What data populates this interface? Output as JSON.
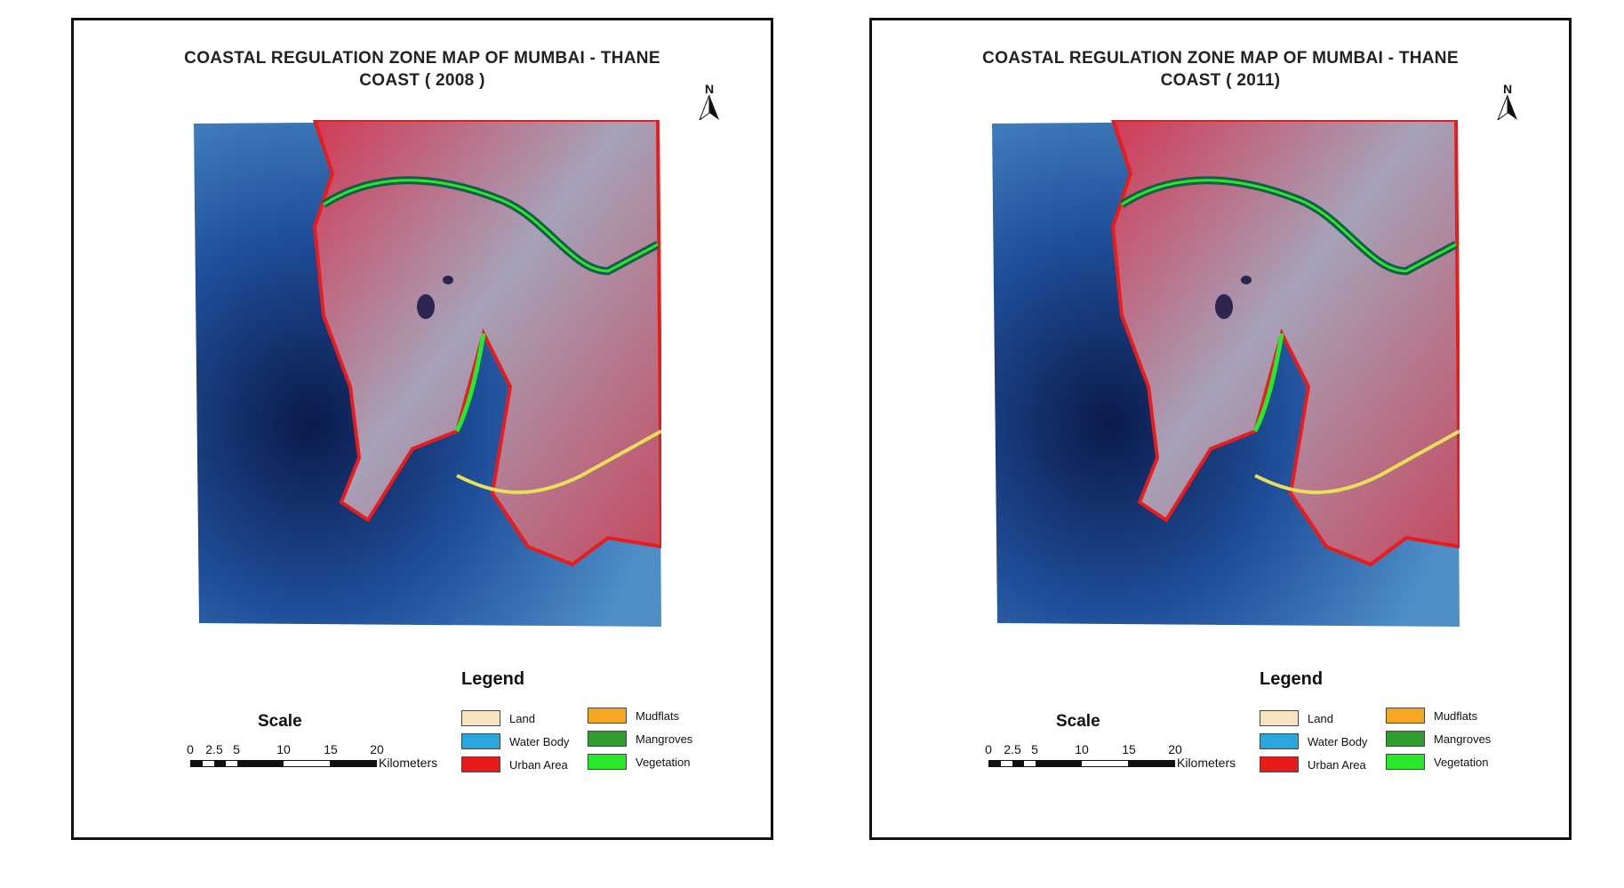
{
  "maps": [
    {
      "title_line1": "COASTAL REGULATION ZONE MAP OF MUMBAI - THANE",
      "title_line2": "COAST  ( 2008 )",
      "north": "N",
      "legend_title": "Legend",
      "legend": [
        {
          "label": "Land",
          "color": "#f6e3c0"
        },
        {
          "label": "Water Body",
          "color": "#2aa6df"
        },
        {
          "label": "Urban Area",
          "color": "#e81c1c"
        },
        {
          "label": "Mudflats",
          "color": "#f5a623"
        },
        {
          "label": "Mangroves",
          "color": "#2f9e2f"
        },
        {
          "label": "Vegetation",
          "color": "#27e82a"
        }
      ],
      "scale_title": "Scale",
      "scale_ticks": [
        "0",
        "2.5",
        "5",
        "10",
        "15",
        "20"
      ],
      "scale_unit": "Kilometers"
    },
    {
      "title_line1": "COASTAL REGULATION ZONE MAP OF MUMBAI - THANE",
      "title_line2": "COAST  ( 2011)",
      "north": "N",
      "legend_title": "Legend",
      "legend": [
        {
          "label": "Land",
          "color": "#f6e3c0"
        },
        {
          "label": "Water Body",
          "color": "#2aa6df"
        },
        {
          "label": "Urban Area",
          "color": "#e81c1c"
        },
        {
          "label": "Mudflats",
          "color": "#f5a623"
        },
        {
          "label": "Mangroves",
          "color": "#2f9e2f"
        },
        {
          "label": "Vegetation",
          "color": "#27e82a"
        }
      ],
      "scale_title": "Scale",
      "scale_ticks": [
        "0",
        "2.5",
        "5",
        "10",
        "15",
        "20"
      ],
      "scale_unit": "Kilometers"
    }
  ],
  "colors": {
    "sea_deep": "#0b1a4a",
    "sea_mid": "#1f4f9a",
    "sea_light": "#4f8fc8",
    "land_grey": "#9aa0b8",
    "land_red": "#d23a55",
    "coast_red": "#e81c1c",
    "coast_green": "#27e82a",
    "coast_yellow": "#e8e05a"
  }
}
